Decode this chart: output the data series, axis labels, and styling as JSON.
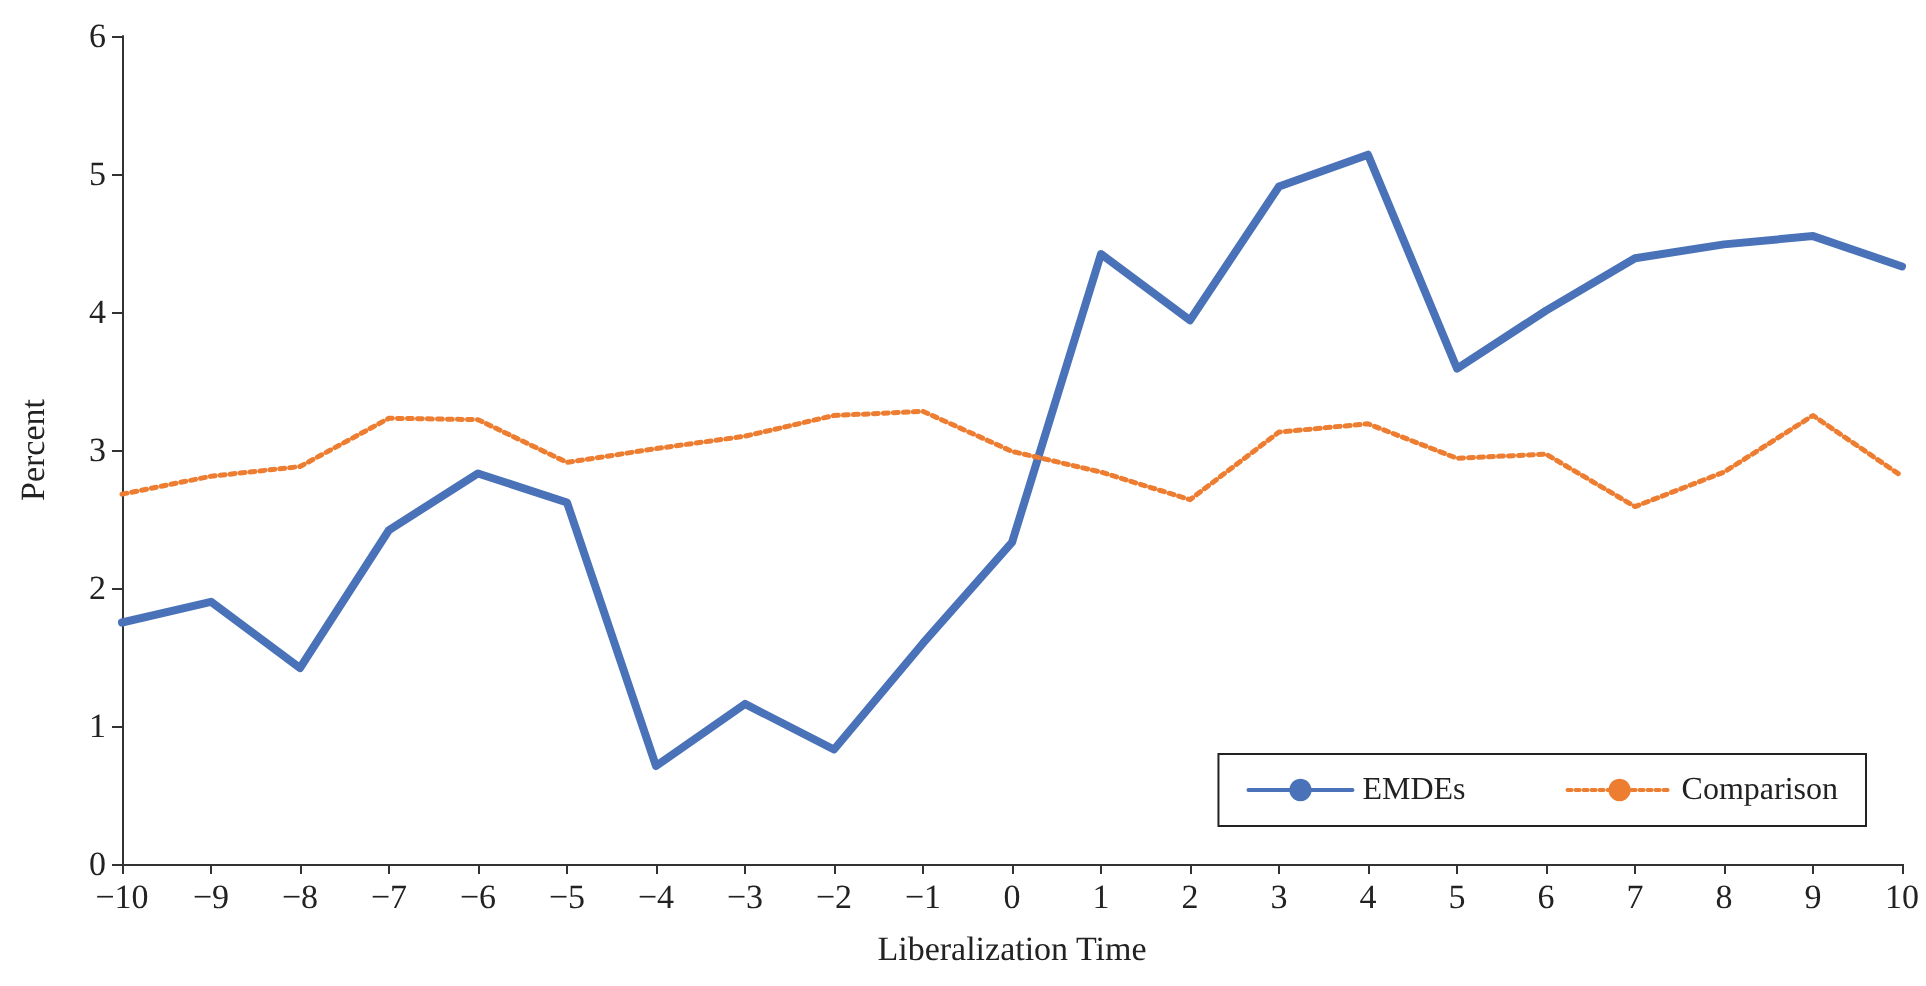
{
  "chart_data": {
    "type": "line",
    "xlabel": "Liberalization Time",
    "ylabel": "Percent",
    "x": [
      -10,
      -9,
      -8,
      -7,
      -6,
      -5,
      -4,
      -3,
      -2,
      -1,
      0,
      1,
      2,
      3,
      4,
      5,
      6,
      7,
      8,
      9,
      10
    ],
    "series": [
      {
        "name": "EMDEs",
        "color": "#4a72b8",
        "line_style": "solid",
        "values": [
          1.75,
          1.9,
          1.42,
          2.42,
          2.83,
          2.62,
          0.71,
          1.16,
          0.83,
          1.6,
          2.33,
          4.42,
          3.94,
          4.91,
          5.14,
          3.59,
          4.01,
          4.39,
          4.49,
          4.55,
          4.33
        ]
      },
      {
        "name": "Comparison",
        "color": "#ed7d31",
        "line_style": "dotted",
        "values": [
          2.68,
          2.81,
          2.88,
          3.23,
          3.22,
          2.91,
          3.01,
          3.1,
          3.25,
          3.28,
          2.99,
          2.84,
          2.64,
          3.13,
          3.19,
          2.94,
          2.97,
          2.59,
          2.84,
          3.25,
          2.81
        ]
      }
    ],
    "xlim": [
      -10,
      10
    ],
    "xticks": [
      -10,
      -9,
      -8,
      -7,
      -6,
      -5,
      -4,
      -3,
      -2,
      -1,
      0,
      1,
      2,
      3,
      4,
      5,
      6,
      7,
      8,
      9,
      10
    ],
    "ylim": [
      0,
      6
    ],
    "yticks": [
      0,
      1,
      2,
      3,
      4,
      5,
      6
    ],
    "grid": false,
    "legend": "bottom right",
    "marker": "none"
  }
}
